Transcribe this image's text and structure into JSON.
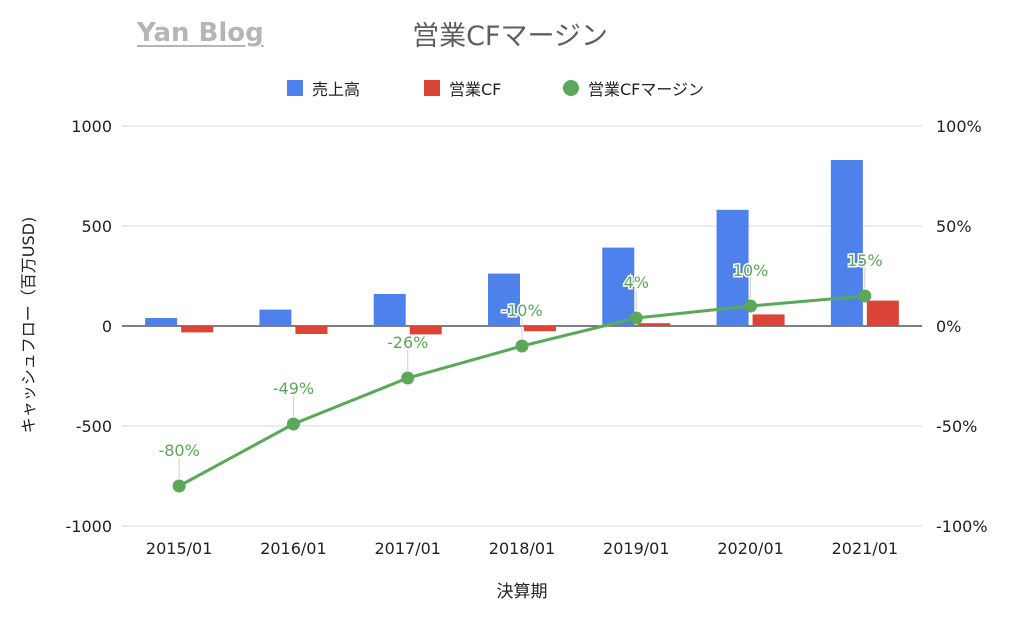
{
  "watermark": "Yan Blog",
  "chart_data": {
    "type": "bar",
    "title": "営業CFマージン",
    "xlabel": "決算期",
    "ylabel": "キャッシュフロー（百万USD)",
    "categories": [
      "2015/01",
      "2016/01",
      "2017/01",
      "2018/01",
      "2019/01",
      "2020/01",
      "2021/01"
    ],
    "ylim": [
      -1000,
      1000
    ],
    "yticks": [
      "1000",
      "500",
      "0",
      "-500",
      "-1000"
    ],
    "y2lim": [
      -1,
      1
    ],
    "y2ticks": [
      "100%",
      "50%",
      "0%",
      "-50%",
      "-100%"
    ],
    "grid": true,
    "legend_position": "top",
    "series": [
      {
        "name": "売上高",
        "kind": "bar",
        "axis": "left",
        "color": "#4f81ec",
        "values": [
          40,
          82,
          160,
          262,
          392,
          581,
          830
        ]
      },
      {
        "name": "営業CF",
        "kind": "bar",
        "axis": "left",
        "color": "#db4437",
        "values": [
          -32,
          -40,
          -42,
          -26,
          14,
          58,
          127
        ]
      },
      {
        "name": "営業CFマージン",
        "kind": "line",
        "axis": "right",
        "color": "#5aa858",
        "values": [
          -0.8,
          -0.49,
          -0.26,
          -0.1,
          0.04,
          0.1,
          0.15
        ],
        "labels": [
          "-80%",
          "-49%",
          "-26%",
          "-10%",
          "4%",
          "10%",
          "15%"
        ]
      }
    ]
  }
}
